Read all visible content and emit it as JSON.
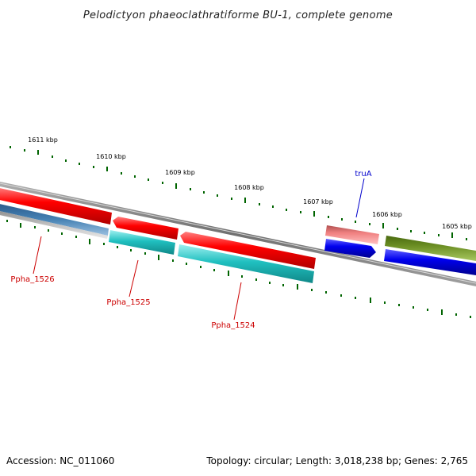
{
  "title": "Pelodictyon phaeoclathratiforme BU-1, complete genome",
  "kbp_labels": [
    "1611 kbp",
    "1610 kbp",
    "1609 kbp",
    "1608 kbp",
    "1607 kbp",
    "1606 kbp",
    "1605 kbp"
  ],
  "genes": [
    {
      "name": "Ppha_1526",
      "color": "#cc0000"
    },
    {
      "name": "Ppha_1525",
      "color": "#cc0000"
    },
    {
      "name": "Ppha_1524",
      "color": "#cc0000"
    },
    {
      "name": "truA",
      "color": "#0000cc"
    }
  ],
  "colors": {
    "gene_red": "#ff0000",
    "gene_pink": "#f08080",
    "gene_blue": "#0000ee",
    "gene_olive": "#6b8e23",
    "gene_cyan": "#20c0c0",
    "gene_steelblue": "#4682b4",
    "gene_gray": "#b0b0b0",
    "backbone": "#808080",
    "tick": "#006400"
  },
  "footer": {
    "accession": "Accession: NC_011060",
    "topology": "Topology: circular; Length: 3,018,238 bp; Genes: 2,765"
  }
}
